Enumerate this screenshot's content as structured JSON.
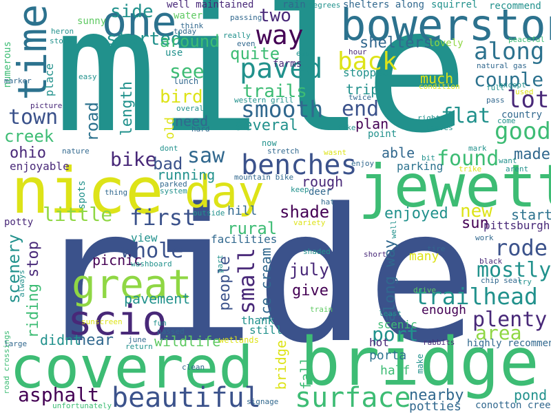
{
  "palette": {
    "navy": "#3b528b",
    "teal": "#21918c",
    "sea": "#2c728e",
    "green": "#3dbc74",
    "lime": "#8fd744",
    "yellow": "#dde318",
    "purple": "#440154",
    "violet": "#482878",
    "mint": "#5ec962",
    "sky": "#31688e"
  },
  "words": [
    {
      "id": "mile",
      "text": "mile",
      "color": "teal"
    },
    {
      "id": "ride",
      "text": "ride",
      "color": "navy"
    },
    {
      "id": "covered",
      "text": "covered",
      "color": "green"
    },
    {
      "id": "bridge",
      "text": "bridge",
      "color": "green"
    },
    {
      "id": "nice",
      "text": "nice",
      "color": "yellow"
    },
    {
      "id": "jewett",
      "text": "jewett",
      "color": "green"
    },
    {
      "id": "bowerston",
      "text": "bowerston",
      "color": "sea"
    },
    {
      "id": "great",
      "text": "great",
      "color": "lime"
    },
    {
      "id": "scio",
      "text": "scio",
      "color": "violet"
    },
    {
      "id": "day",
      "text": "day",
      "color": "yellow"
    },
    {
      "id": "one",
      "text": "one",
      "color": "sea"
    },
    {
      "id": "time",
      "text": "time",
      "color": "sea"
    },
    {
      "id": "benches",
      "text": "benches",
      "color": "navy"
    },
    {
      "id": "surface",
      "text": "surface",
      "color": "green"
    },
    {
      "id": "beautiful",
      "text": "beautiful",
      "color": "navy"
    },
    {
      "id": "trailhead",
      "text": "trailhead",
      "color": "teal"
    },
    {
      "id": "way",
      "text": "way",
      "color": "purple"
    },
    {
      "id": "along",
      "text": "along",
      "color": "sea"
    },
    {
      "id": "paved",
      "text": "paved",
      "color": "teal"
    },
    {
      "id": "back",
      "text": "back",
      "color": "yellow"
    },
    {
      "id": "smooth",
      "text": "smooth",
      "color": "sky"
    },
    {
      "id": "good",
      "text": "good",
      "color": "green"
    },
    {
      "id": "lot",
      "text": "lot",
      "color": "violet"
    },
    {
      "id": "rode",
      "text": "rode",
      "color": "navy"
    },
    {
      "id": "mostly",
      "text": "mostly",
      "color": "teal"
    },
    {
      "id": "plenty",
      "text": "plenty",
      "color": "violet"
    },
    {
      "id": "area",
      "text": "area",
      "color": "lime"
    },
    {
      "id": "small",
      "text": "small",
      "color": "violet"
    },
    {
      "id": "town",
      "text": "town",
      "color": "navy"
    },
    {
      "id": "saw",
      "text": "saw",
      "color": "sky"
    },
    {
      "id": "bike",
      "text": "bike",
      "color": "violet"
    },
    {
      "id": "first",
      "text": "first",
      "color": "navy"
    },
    {
      "id": "whole",
      "text": "whole",
      "color": "navy"
    },
    {
      "id": "asphalt",
      "text": "asphalt",
      "color": "purple"
    },
    {
      "id": "port",
      "text": "port",
      "color": "teal"
    },
    {
      "id": "found",
      "text": "found",
      "color": "green"
    },
    {
      "id": "end",
      "text": "end",
      "color": "navy"
    },
    {
      "id": "couple",
      "text": "couple",
      "color": "sea"
    },
    {
      "id": "flat",
      "text": "flat",
      "color": "teal"
    },
    {
      "id": "trails",
      "text": "trails",
      "color": "green"
    },
    {
      "id": "see",
      "text": "see",
      "color": "green"
    },
    {
      "id": "two",
      "text": "two",
      "color": "violet"
    },
    {
      "id": "side",
      "text": "side",
      "color": "teal"
    },
    {
      "id": "started",
      "text": "started",
      "color": "teal"
    },
    {
      "id": "around",
      "text": "around",
      "color": "green"
    },
    {
      "id": "quite",
      "text": "quite",
      "color": "green"
    },
    {
      "id": "several",
      "text": "several",
      "color": "teal"
    },
    {
      "id": "bird",
      "text": "bird",
      "color": "yellow"
    },
    {
      "id": "road",
      "text": "road",
      "color": "sea"
    },
    {
      "id": "length",
      "text": "length",
      "color": "teal"
    },
    {
      "id": "creek",
      "text": "creek",
      "color": "green"
    },
    {
      "id": "ohio",
      "text": "ohio",
      "color": "violet"
    },
    {
      "id": "bad",
      "text": "bad",
      "color": "navy"
    },
    {
      "id": "little",
      "text": "little",
      "color": "lime"
    },
    {
      "id": "shade",
      "text": "shade",
      "color": "purple"
    },
    {
      "id": "new",
      "text": "new",
      "color": "yellow"
    },
    {
      "id": "sun",
      "text": "sun",
      "color": "purple"
    },
    {
      "id": "start",
      "text": "start",
      "color": "sea"
    },
    {
      "id": "made",
      "text": "made",
      "color": "sky"
    },
    {
      "id": "enjoyed",
      "text": "enjoyed",
      "color": "teal"
    },
    {
      "id": "rough",
      "text": "rough",
      "color": "violet"
    },
    {
      "id": "hill",
      "text": "hill",
      "color": "sky"
    },
    {
      "id": "rural",
      "text": "rural",
      "color": "green"
    },
    {
      "id": "scenery",
      "text": "scenery",
      "color": "teal"
    },
    {
      "id": "riding",
      "text": "riding",
      "color": "green"
    },
    {
      "id": "stop",
      "text": "stop",
      "color": "violet"
    },
    {
      "id": "people",
      "text": "people",
      "color": "navy"
    },
    {
      "id": "ice-cream",
      "text": "ice cream",
      "color": "sky"
    },
    {
      "id": "july",
      "text": "july",
      "color": "violet"
    },
    {
      "id": "give",
      "text": "give",
      "color": "purple"
    },
    {
      "id": "along-way",
      "text": "along way",
      "color": "sky"
    },
    {
      "id": "picnic",
      "text": "picnic",
      "color": "purple"
    },
    {
      "id": "pavement",
      "text": "pavement",
      "color": "teal"
    },
    {
      "id": "near",
      "text": "near",
      "color": "sky"
    },
    {
      "id": "wildlife",
      "text": "wildlife",
      "color": "mint"
    },
    {
      "id": "nearby",
      "text": "nearby",
      "color": "sky"
    },
    {
      "id": "potties",
      "text": "potties",
      "color": "sky"
    },
    {
      "id": "pond",
      "text": "pond",
      "color": "teal"
    },
    {
      "id": "didnt",
      "text": "didnt",
      "color": "teal"
    },
    {
      "id": "running",
      "text": "running",
      "color": "teal"
    },
    {
      "id": "need",
      "text": "need",
      "color": "sky"
    },
    {
      "id": "shelters",
      "text": "shelters",
      "color": "sky"
    },
    {
      "id": "stopped",
      "text": "stopped",
      "color": "teal"
    },
    {
      "id": "trip",
      "text": "trip",
      "color": "teal"
    },
    {
      "id": "much",
      "text": "much",
      "color": "yellow"
    },
    {
      "id": "plan",
      "text": "plan",
      "color": "purple"
    },
    {
      "id": "able",
      "text": "able",
      "color": "sky"
    },
    {
      "id": "parking",
      "text": "parking",
      "color": "sea"
    },
    {
      "id": "pittsburgh",
      "text": "pittsburgh",
      "color": "violet"
    },
    {
      "id": "many",
      "text": "many",
      "color": "yellow"
    },
    {
      "id": "enough",
      "text": "enough",
      "color": "purple"
    },
    {
      "id": "scenic",
      "text": "scenic",
      "color": "green"
    },
    {
      "id": "half",
      "text": "half",
      "color": "green"
    },
    {
      "id": "porta",
      "text": "porta",
      "color": "sea"
    },
    {
      "id": "hot",
      "text": "hot",
      "color": "violet"
    },
    {
      "id": "thank",
      "text": "thank",
      "color": "teal"
    },
    {
      "id": "still",
      "text": "still",
      "color": "teal"
    },
    {
      "id": "fall",
      "text": "fall",
      "color": "green"
    },
    {
      "id": "bridge-small",
      "text": "bridge",
      "color": "yellow"
    },
    {
      "id": "facilities",
      "text": "facilities",
      "color": "sky"
    },
    {
      "id": "view",
      "text": "view",
      "color": "teal"
    },
    {
      "id": "enjoyable",
      "text": "enjoyable",
      "color": "violet"
    },
    {
      "id": "old",
      "text": "old",
      "color": "yellow"
    },
    {
      "id": "well-maintained",
      "text": "well maintained",
      "color": "violet"
    },
    {
      "id": "water",
      "text": "water",
      "color": "mint"
    },
    {
      "id": "sunny",
      "text": "sunny",
      "color": "mint"
    },
    {
      "id": "use",
      "text": "use",
      "color": "teal"
    },
    {
      "id": "lunch",
      "text": "lunch",
      "color": "sky"
    },
    {
      "id": "farms",
      "text": "farms",
      "color": "violet"
    },
    {
      "id": "rain",
      "text": "rain",
      "color": "sky"
    },
    {
      "id": "shelters-along",
      "text": "shelters along",
      "color": "sky"
    },
    {
      "id": "squirrel",
      "text": "squirrel",
      "color": "teal"
    },
    {
      "id": "recommend",
      "text": "recommend",
      "color": "teal"
    },
    {
      "id": "lovely",
      "text": "lovely",
      "color": "lime"
    },
    {
      "id": "country",
      "text": "country",
      "color": "sky"
    },
    {
      "id": "point",
      "text": "point",
      "color": "teal"
    },
    {
      "id": "numerous",
      "text": "numerous",
      "color": "green"
    },
    {
      "id": "place",
      "text": "place",
      "color": "teal"
    },
    {
      "id": "highly-recommend",
      "text": "highly recommend",
      "color": "sky"
    },
    {
      "id": "conotton-creek",
      "text": "conotton creek",
      "color": "sky"
    },
    {
      "id": "potty",
      "text": "potty",
      "color": "violet"
    },
    {
      "id": "spots",
      "text": "spots",
      "color": "teal"
    },
    {
      "id": "washboard",
      "text": "washboard",
      "color": "teal"
    },
    {
      "id": "mountain-bike",
      "text": "mountain bike",
      "color": "sky"
    },
    {
      "id": "deer",
      "text": "deer",
      "color": "sky"
    },
    {
      "id": "parked",
      "text": "parked",
      "color": "sky"
    },
    {
      "id": "system",
      "text": "system",
      "color": "teal"
    },
    {
      "id": "thing",
      "text": "thing",
      "color": "sky"
    },
    {
      "id": "outside",
      "text": "outside",
      "color": "teal"
    },
    {
      "id": "wetlands",
      "text": "wetlands",
      "color": "yellow"
    },
    {
      "id": "train",
      "text": "train",
      "color": "mint"
    },
    {
      "id": "shaded",
      "text": "shaded",
      "color": "teal"
    },
    {
      "id": "short",
      "text": "short",
      "color": "violet"
    },
    {
      "id": "least",
      "text": "least",
      "color": "teal"
    },
    {
      "id": "fun",
      "text": "fun",
      "color": "teal"
    },
    {
      "id": "passed",
      "text": "passed",
      "color": "sky"
    },
    {
      "id": "june",
      "text": "june",
      "color": "sky"
    },
    {
      "id": "return",
      "text": "return",
      "color": "teal"
    },
    {
      "id": "clean",
      "text": "clean",
      "color": "sky"
    },
    {
      "id": "rabbits",
      "text": "rabbits",
      "color": "violet"
    },
    {
      "id": "make",
      "text": "make",
      "color": "teal"
    },
    {
      "id": "tire",
      "text": "tire",
      "color": "sky"
    },
    {
      "id": "black",
      "text": "black",
      "color": "violet"
    },
    {
      "id": "chip-seal",
      "text": "chip seal",
      "color": "sky"
    },
    {
      "id": "try",
      "text": "try",
      "color": "teal"
    },
    {
      "id": "work",
      "text": "work",
      "color": "sky"
    },
    {
      "id": "drive",
      "text": "drive",
      "color": "mint"
    },
    {
      "id": "signage",
      "text": "signage",
      "color": "sky"
    },
    {
      "id": "unfortunately",
      "text": "unfortunately",
      "color": "green"
    },
    {
      "id": "road-crossings",
      "text": "road crossings",
      "color": "green"
    },
    {
      "id": "large",
      "text": "large",
      "color": "sky"
    },
    {
      "id": "always",
      "text": "always",
      "color": "teal"
    },
    {
      "id": "sunscreen",
      "text": "sunscreen",
      "color": "yellow"
    },
    {
      "id": "picture",
      "text": "picture",
      "color": "violet"
    },
    {
      "id": "nature",
      "text": "nature",
      "color": "sky"
    },
    {
      "id": "heron",
      "text": "heron",
      "color": "teal"
    },
    {
      "id": "store",
      "text": "store",
      "color": "teal"
    },
    {
      "id": "marker",
      "text": "marker",
      "color": "sky"
    },
    {
      "id": "easy",
      "text": "easy",
      "color": "teal"
    },
    {
      "id": "overall",
      "text": "overall",
      "color": "teal"
    },
    {
      "id": "hard",
      "text": "hard",
      "color": "sky"
    },
    {
      "id": "western-grill",
      "text": "western grill",
      "color": "teal"
    },
    {
      "id": "twice",
      "text": "twice",
      "color": "sky"
    },
    {
      "id": "take",
      "text": "take",
      "color": "teal"
    },
    {
      "id": "now",
      "text": "now",
      "color": "teal"
    },
    {
      "id": "stretch",
      "text": "stretch",
      "color": "sky"
    },
    {
      "id": "wasnt",
      "text": "wasnt",
      "color": "yellow"
    },
    {
      "id": "enjoy",
      "text": "enjoy",
      "color": "sky"
    },
    {
      "id": "dont",
      "text": "dont",
      "color": "teal"
    },
    {
      "id": "keep",
      "text": "keep",
      "color": "teal"
    },
    {
      "id": "hat",
      "text": "hat",
      "color": "sky"
    },
    {
      "id": "variety",
      "text": "variety",
      "color": "yellow"
    },
    {
      "id": "part",
      "text": "part",
      "color": "teal"
    },
    {
      "id": "well",
      "text": "well",
      "color": "teal"
    },
    {
      "id": "think",
      "text": "think",
      "color": "sky"
    },
    {
      "id": "today",
      "text": "today",
      "color": "sky"
    },
    {
      "id": "really",
      "text": "really",
      "color": "teal"
    },
    {
      "id": "even",
      "text": "even",
      "color": "sky"
    },
    {
      "id": "east",
      "text": "east",
      "color": "teal"
    },
    {
      "id": "passing",
      "text": "passing",
      "color": "sky"
    },
    {
      "id": "degrees",
      "text": "degrees",
      "color": "teal"
    },
    {
      "id": "hour",
      "text": "hour",
      "color": "violet"
    },
    {
      "id": "natural-gas",
      "text": "natural gas",
      "color": "sky"
    },
    {
      "id": "peaceful",
      "text": "peaceful",
      "color": "green"
    },
    {
      "id": "except",
      "text": "except",
      "color": "teal"
    },
    {
      "id": "condition",
      "text": "condition",
      "color": "yellow"
    },
    {
      "id": "full",
      "text": "full",
      "color": "teal"
    },
    {
      "id": "used",
      "text": "used",
      "color": "yellow"
    },
    {
      "id": "pass",
      "text": "pass",
      "color": "sky"
    },
    {
      "id": "come",
      "text": "come",
      "color": "teal"
    },
    {
      "id": "right",
      "text": "right",
      "color": "teal"
    },
    {
      "id": "leaves",
      "text": "leaves",
      "color": "teal"
    },
    {
      "id": "bit",
      "text": "bit",
      "color": "teal"
    },
    {
      "id": "mark",
      "text": "mark",
      "color": "teal"
    },
    {
      "id": "trike",
      "text": "trike",
      "color": "yellow"
    },
    {
      "id": "want",
      "text": "want",
      "color": "teal"
    },
    {
      "id": "arent",
      "text": "arent",
      "color": "teal"
    }
  ]
}
